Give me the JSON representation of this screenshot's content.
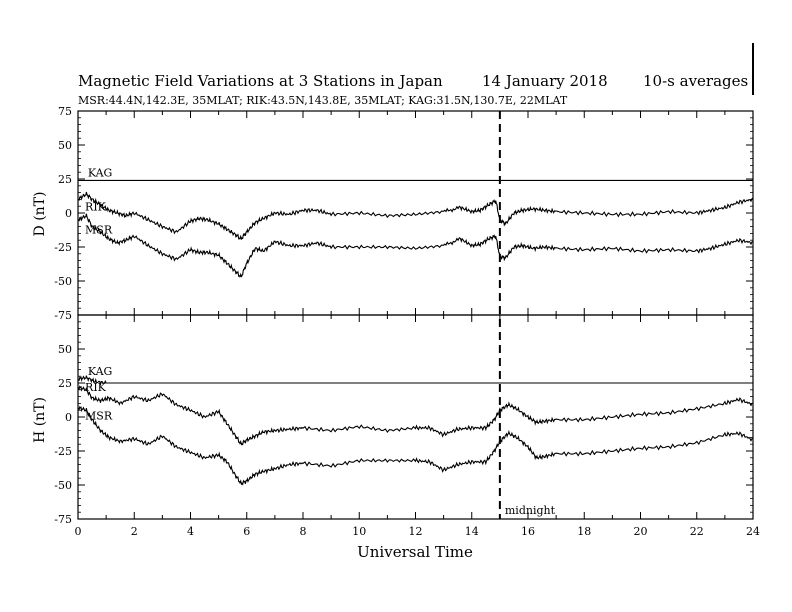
{
  "header": {
    "title": "Magnetic Field Variations at 3 Stations in Japan",
    "date": "14 January 2018",
    "averaging": "10-s averages",
    "stations": "MSR:44.4N,142.3E, 35MLAT;  RIK:43.5N,143.8E, 35MLAT;  KAG:31.5N,130.7E, 22MLAT"
  },
  "chart_data": [
    {
      "type": "line",
      "ylabel": "D (nT)",
      "ylim": [
        -75,
        75
      ],
      "yticks": [
        75,
        50,
        25,
        0,
        -25,
        -50,
        -75
      ],
      "xlim": [
        0,
        24
      ],
      "series": [
        {
          "name": "KAG",
          "x": [
            0,
            24
          ],
          "y": [
            24,
            24
          ]
        },
        {
          "name": "RIK",
          "x": [
            0,
            0.3,
            0.5,
            0.8,
            1.1,
            1.4,
            1.7,
            2,
            2.5,
            3,
            3.5,
            4,
            4.3,
            4.6,
            5,
            5.3,
            5.6,
            5.8,
            6,
            6.3,
            6.6,
            7,
            7.5,
            8,
            8.5,
            9,
            10,
            11,
            12,
            13,
            13.6,
            14,
            14.3,
            14.6,
            14.85,
            15,
            15.2,
            15.5,
            15.8,
            16.2,
            16.6,
            17,
            18,
            19,
            20,
            21,
            22,
            22.5,
            23,
            23.5,
            24
          ],
          "y": [
            10,
            14,
            10,
            6,
            2,
            0,
            -2,
            0,
            -5,
            -10,
            -14,
            -6,
            -4,
            -5,
            -8,
            -12,
            -16,
            -19,
            -14,
            -7,
            -4,
            0,
            -1,
            2,
            2,
            -1,
            0,
            -2,
            -1,
            1,
            4,
            1,
            2,
            6,
            9,
            -5,
            -8,
            0,
            2,
            3,
            2,
            1,
            0,
            -1,
            -1,
            1,
            0,
            2,
            4,
            8,
            10
          ]
        },
        {
          "name": "MSR",
          "x": [
            0,
            0.3,
            0.5,
            0.8,
            1.1,
            1.4,
            1.7,
            2,
            2.5,
            3,
            3.5,
            4,
            4.3,
            4.6,
            5,
            5.3,
            5.6,
            5.8,
            6,
            6.3,
            6.6,
            7,
            7.5,
            8,
            8.5,
            9,
            10,
            11,
            12,
            13,
            13.6,
            14,
            14.3,
            14.6,
            14.85,
            15,
            15.2,
            15.5,
            15.8,
            16.2,
            16.6,
            17,
            18,
            19,
            20,
            21,
            22,
            22.5,
            23,
            23.5,
            24
          ],
          "y": [
            -5,
            -2,
            -10,
            -14,
            -19,
            -22,
            -20,
            -17,
            -24,
            -30,
            -34,
            -27,
            -29,
            -29,
            -31,
            -37,
            -43,
            -47,
            -37,
            -26,
            -28,
            -21,
            -24,
            -24,
            -22,
            -25,
            -25,
            -25,
            -26,
            -24,
            -19,
            -24,
            -23,
            -19,
            -17,
            -32,
            -33,
            -25,
            -24,
            -26,
            -25,
            -26,
            -27,
            -26,
            -28,
            -27,
            -28,
            -26,
            -23,
            -20,
            -22
          ]
        }
      ],
      "annotations": [
        "KAG",
        "RIK",
        "MSR"
      ]
    },
    {
      "type": "line",
      "ylabel": "H (nT)",
      "xlabel": "Universal Time",
      "ylim": [
        -75,
        75
      ],
      "yticks": [
        50,
        25,
        0,
        -25,
        -50,
        -75
      ],
      "xlim": [
        0,
        24
      ],
      "xticks": [
        0,
        2,
        4,
        6,
        8,
        10,
        12,
        14,
        16,
        18,
        20,
        22,
        24
      ],
      "series": [
        {
          "name": "KAG",
          "x": [
            0,
            0.3,
            0.6,
            1,
            24
          ],
          "y": [
            28,
            29,
            26,
            25,
            25
          ]
        },
        {
          "name": "RIK",
          "x": [
            0,
            0.3,
            0.5,
            0.8,
            1.1,
            1.5,
            2,
            2.5,
            3,
            3.5,
            4,
            4.5,
            5,
            5.3,
            5.6,
            5.8,
            6,
            6.3,
            6.6,
            7,
            7.5,
            8,
            9,
            10,
            11,
            12,
            12.5,
            13,
            13.5,
            14,
            14.5,
            14.8,
            15,
            15.3,
            15.6,
            16,
            16.3,
            16.6,
            17,
            18,
            19,
            20,
            21,
            22,
            23,
            23.5,
            24
          ],
          "y": [
            22,
            20,
            14,
            12,
            14,
            10,
            15,
            12,
            17,
            9,
            5,
            0,
            4,
            -5,
            -14,
            -20,
            -17,
            -14,
            -11,
            -10,
            -9,
            -8,
            -10,
            -7,
            -10,
            -8,
            -8,
            -13,
            -9,
            -8,
            -8,
            -2,
            5,
            9,
            6,
            0,
            -4,
            -3,
            -2,
            -2,
            0,
            2,
            3,
            6,
            10,
            13,
            9
          ]
        },
        {
          "name": "MSR",
          "x": [
            0,
            0.3,
            0.5,
            0.8,
            1.1,
            1.5,
            2,
            2.5,
            3,
            3.5,
            4,
            4.5,
            5,
            5.3,
            5.6,
            5.8,
            6,
            6.3,
            6.6,
            7,
            7.5,
            8,
            9,
            10,
            11,
            12,
            12.5,
            13,
            13.5,
            14,
            14.5,
            14.8,
            15,
            15.3,
            15.6,
            16,
            16.3,
            16.6,
            17,
            18,
            19,
            20,
            21,
            22,
            23,
            23.5,
            24
          ],
          "y": [
            7,
            5,
            -2,
            -10,
            -15,
            -18,
            -16,
            -20,
            -14,
            -22,
            -26,
            -30,
            -28,
            -33,
            -43,
            -49,
            -47,
            -42,
            -40,
            -38,
            -35,
            -34,
            -36,
            -32,
            -32,
            -32,
            -33,
            -39,
            -35,
            -33,
            -33,
            -25,
            -18,
            -12,
            -15,
            -22,
            -30,
            -29,
            -27,
            -27,
            -25,
            -23,
            -22,
            -19,
            -13,
            -12,
            -17
          ]
        }
      ],
      "annotations": [
        "KAG",
        "RIK",
        "MSR",
        "midnight"
      ]
    }
  ],
  "shared_x": {
    "vline_at": 15,
    "vline_style": "dashed",
    "vline_label": "midnight"
  },
  "colors": {
    "line": "#000000",
    "background": "#ffffff"
  }
}
